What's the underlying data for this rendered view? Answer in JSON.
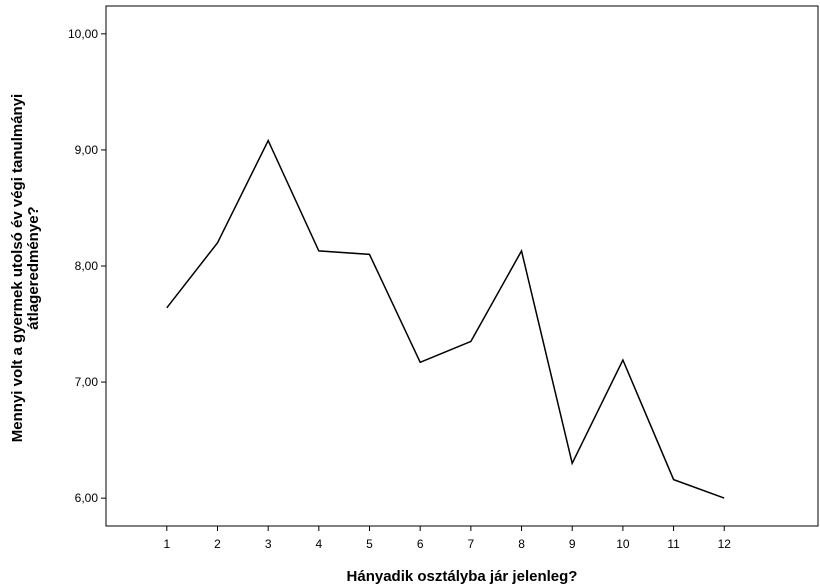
{
  "chart_data": {
    "type": "line",
    "x": [
      1,
      2,
      3,
      4,
      5,
      6,
      7,
      8,
      9,
      10,
      11,
      12
    ],
    "series": [
      {
        "values": [
          7.64,
          8.2,
          9.08,
          8.13,
          8.1,
          7.17,
          7.35,
          8.13,
          6.3,
          7.19,
          6.16,
          6.0
        ]
      }
    ],
    "x_ticks": [
      "1",
      "2",
      "3",
      "4",
      "5",
      "6",
      "7",
      "8",
      "9",
      "10",
      "11",
      "12"
    ],
    "y_ticks": [
      "6,00",
      "7,00",
      "8,00",
      "9,00",
      "10,00"
    ],
    "y_tick_values": [
      6,
      7,
      8,
      9,
      10
    ],
    "xlabel": "Hányadik osztályba jár jelenleg?",
    "ylabel_lines": [
      "Mennyi volt a gyermek utolsó év végi tanulmányi",
      "átlageredménye?"
    ],
    "xlim": [
      -0.2,
      13.85
    ],
    "ylim": [
      5.76,
      10.24
    ],
    "grid": false,
    "line_color": "#000000",
    "axis_color": "#000000"
  }
}
